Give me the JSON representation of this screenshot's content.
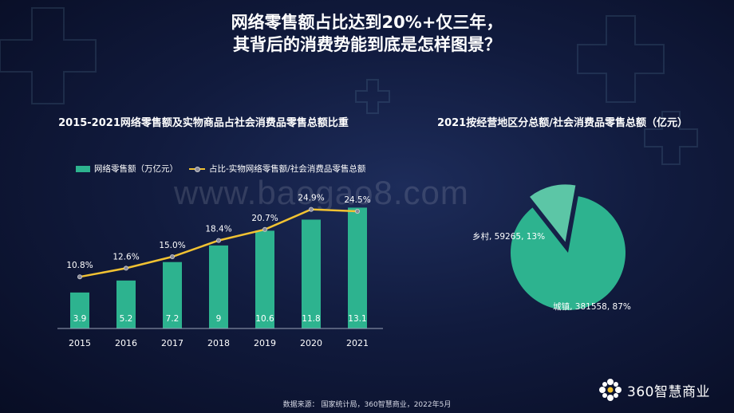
{
  "slide": {
    "title_line1": "网络零售额占比达到20%+仅三年，",
    "title_line2": "其背后的消费势能到底是怎样图景？",
    "watermark": "www.baogao8.com",
    "source": "数据来源： 国家统计局，360智慧商业，2022年5月",
    "brand": "360智慧商业",
    "accent": "#2db38f",
    "line_color": "#f1c232"
  },
  "chart_data": [
    {
      "type": "bar",
      "title": "2015-2021网络零售额及实物商品占社会消费品零售总额比重",
      "categories": [
        "2015",
        "2016",
        "2017",
        "2018",
        "2019",
        "2020",
        "2021"
      ],
      "series": [
        {
          "name": "网络零售额（万亿元）",
          "type": "bar",
          "values": [
            3.9,
            5.2,
            7.2,
            9,
            10.6,
            11.8,
            13.1
          ],
          "labels": [
            "3.9",
            "5.2",
            "7.2",
            "9",
            "10.6",
            "11.8",
            "13.1"
          ]
        },
        {
          "name": "占比-实物网络零售额/社会消费品零售总额",
          "type": "line",
          "values": [
            10.8,
            12.6,
            15.0,
            18.4,
            20.7,
            24.9,
            24.5
          ],
          "labels": [
            "10.8%",
            "12.6%",
            "15.0%",
            "18.4%",
            "20.7%",
            "24.9%",
            "24.5%"
          ]
        }
      ],
      "bar_ylim": [
        0,
        14
      ],
      "line_ylim": [
        0,
        27
      ],
      "legend": "top-left",
      "grid": false
    },
    {
      "type": "pie",
      "title": "2021按经营地区分总额/社会消费品零售总额（亿元）",
      "slices": [
        {
          "name": "城镇",
          "value": 381558,
          "percent": 87,
          "label": "城镇, 381558, 87%",
          "color": "#2db38f"
        },
        {
          "name": "乡村",
          "value": 59265,
          "percent": 13,
          "label": "乡村, 59265, 13%",
          "color": "#5cc6a6",
          "exploded": true
        }
      ]
    }
  ]
}
